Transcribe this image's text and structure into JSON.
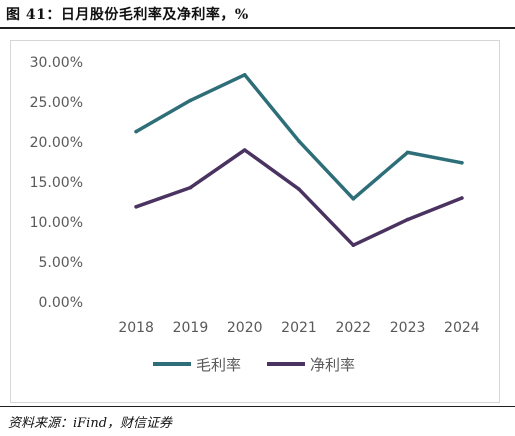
{
  "figure": {
    "title": "图 41：日月股份毛利率及净利率，%",
    "source": "资料来源：iFind，财信证券"
  },
  "chart_data": {
    "type": "line",
    "title": "",
    "xlabel": "",
    "ylabel": "",
    "categories": [
      "2018",
      "2019",
      "2020",
      "2021",
      "2022",
      "2023",
      "2024"
    ],
    "ylim": [
      0,
      30
    ],
    "yticks": [
      "0.00%",
      "5.00%",
      "10.00%",
      "15.00%",
      "20.00%",
      "25.00%",
      "30.00%"
    ],
    "ytick_values": [
      0,
      5,
      10,
      15,
      20,
      25,
      30
    ],
    "grid": false,
    "legend_position": "bottom",
    "series": [
      {
        "name": "毛利率",
        "color": "#2e6e78",
        "values": [
          21.3,
          25.2,
          28.4,
          20.1,
          12.9,
          18.7,
          17.4
        ]
      },
      {
        "name": "净利率",
        "color": "#4a3360",
        "values": [
          11.9,
          14.3,
          19.0,
          14.1,
          7.1,
          10.3,
          13.0
        ]
      }
    ]
  }
}
